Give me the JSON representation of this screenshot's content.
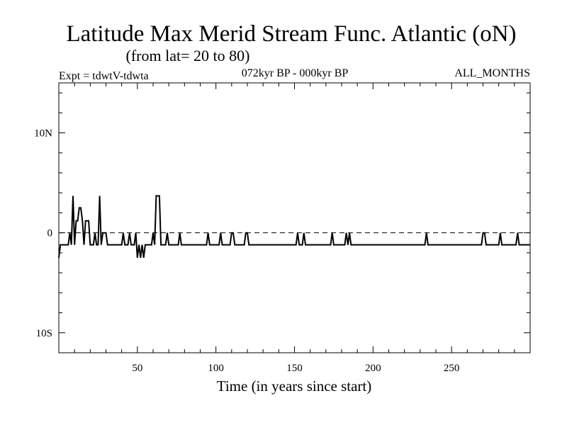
{
  "chart_data": {
    "type": "line",
    "title": "Latitude Max Merid Stream Func. Atlantic (oN)",
    "subtitle": "(from lat= 20 to 80)",
    "experiment": "Expt = tdwtV-tdwta",
    "period": "072kyr BP - 000kyr BP",
    "months": "ALL_MONTHS",
    "xlabel": "Time (in years since start)",
    "ylabel": "",
    "xlim": [
      0,
      300
    ],
    "ylim": [
      -12,
      15
    ],
    "x_ticks": [
      50,
      100,
      150,
      200,
      250
    ],
    "y_ticks": [
      {
        "value": 10,
        "label": "10N"
      },
      {
        "value": 0,
        "label": "0"
      },
      {
        "value": -10,
        "label": "10S"
      }
    ],
    "zero_line": "dashed",
    "series": [
      {
        "color": "#000000",
        "points": [
          [
            0,
            -2.5
          ],
          [
            1,
            -1.2
          ],
          [
            2,
            -1.2
          ],
          [
            3,
            -1.2
          ],
          [
            4,
            -1.2
          ],
          [
            5,
            -1.2
          ],
          [
            6,
            -1.2
          ],
          [
            7,
            0
          ],
          [
            8,
            -1.2
          ],
          [
            9,
            3.7
          ],
          [
            10,
            -1.2
          ],
          [
            11,
            1.2
          ],
          [
            12,
            1.2
          ],
          [
            13,
            2.5
          ],
          [
            14,
            2.5
          ],
          [
            15,
            1.2
          ],
          [
            16,
            -1.2
          ],
          [
            17,
            1.2
          ],
          [
            18,
            1.2
          ],
          [
            19,
            1.2
          ],
          [
            20,
            -1.2
          ],
          [
            21,
            -1.2
          ],
          [
            22,
            -1.2
          ],
          [
            23,
            0
          ],
          [
            24,
            -1.2
          ],
          [
            25,
            -1.2
          ],
          [
            26,
            3.7
          ],
          [
            27,
            -1.2
          ],
          [
            28,
            0
          ],
          [
            29,
            0
          ],
          [
            30,
            0
          ],
          [
            31,
            -1.2
          ],
          [
            32,
            -1.2
          ],
          [
            33,
            -1.2
          ],
          [
            34,
            -1.2
          ],
          [
            35,
            -1.2
          ],
          [
            36,
            -1.2
          ],
          [
            37,
            -1.2
          ],
          [
            38,
            -1.2
          ],
          [
            39,
            -1.2
          ],
          [
            40,
            -1.2
          ],
          [
            41,
            0
          ],
          [
            42,
            -1.2
          ],
          [
            43,
            -1.2
          ],
          [
            44,
            -1.2
          ],
          [
            45,
            0
          ],
          [
            46,
            -1.2
          ],
          [
            47,
            -1.2
          ],
          [
            48,
            -1.2
          ],
          [
            49,
            0
          ],
          [
            50,
            -2.5
          ],
          [
            51,
            -1.2
          ],
          [
            52,
            -2.5
          ],
          [
            53,
            -1.2
          ],
          [
            54,
            -2.5
          ],
          [
            55,
            -1.2
          ],
          [
            56,
            -1.2
          ],
          [
            57,
            -1.2
          ],
          [
            58,
            -1.2
          ],
          [
            59,
            -1.2
          ],
          [
            60,
            0
          ],
          [
            61,
            -1.2
          ],
          [
            62,
            3.7
          ],
          [
            63,
            3.7
          ],
          [
            64,
            3.7
          ],
          [
            65,
            -1.2
          ],
          [
            66,
            -1.2
          ],
          [
            67,
            -1.2
          ],
          [
            68,
            -1.2
          ],
          [
            69,
            0
          ],
          [
            70,
            -1.2
          ],
          [
            71,
            -1.2
          ],
          [
            72,
            -1.2
          ],
          [
            73,
            -1.2
          ],
          [
            74,
            -1.2
          ],
          [
            75,
            -1.2
          ],
          [
            76,
            -1.2
          ],
          [
            77,
            0
          ],
          [
            78,
            -1.2
          ],
          [
            79,
            -1.2
          ],
          [
            80,
            -1.2
          ],
          [
            81,
            -1.2
          ],
          [
            82,
            -1.2
          ],
          [
            83,
            -1.2
          ],
          [
            84,
            -1.2
          ],
          [
            85,
            -1.2
          ],
          [
            86,
            -1.2
          ],
          [
            87,
            -1.2
          ],
          [
            88,
            -1.2
          ],
          [
            89,
            -1.2
          ],
          [
            90,
            -1.2
          ],
          [
            91,
            -1.2
          ],
          [
            92,
            -1.2
          ],
          [
            93,
            -1.2
          ],
          [
            94,
            -1.2
          ],
          [
            95,
            0
          ],
          [
            96,
            -1.2
          ],
          [
            97,
            -1.2
          ],
          [
            98,
            -1.2
          ],
          [
            99,
            -1.2
          ],
          [
            100,
            -1.2
          ],
          [
            101,
            -1.2
          ],
          [
            102,
            -1.2
          ],
          [
            103,
            0
          ],
          [
            104,
            -1.2
          ],
          [
            105,
            -1.2
          ],
          [
            106,
            -1.2
          ],
          [
            107,
            -1.2
          ],
          [
            108,
            -1.2
          ],
          [
            109,
            -1.2
          ],
          [
            110,
            0
          ],
          [
            111,
            0
          ],
          [
            112,
            -1.2
          ],
          [
            113,
            -1.2
          ],
          [
            114,
            -1.2
          ],
          [
            115,
            -1.2
          ],
          [
            116,
            -1.2
          ],
          [
            117,
            -1.2
          ],
          [
            118,
            -1.2
          ],
          [
            119,
            0
          ],
          [
            120,
            0
          ],
          [
            121,
            -1.2
          ],
          [
            122,
            -1.2
          ],
          [
            123,
            -1.2
          ],
          [
            124,
            -1.2
          ],
          [
            125,
            -1.2
          ],
          [
            126,
            -1.2
          ],
          [
            127,
            -1.2
          ],
          [
            128,
            -1.2
          ],
          [
            129,
            -1.2
          ],
          [
            130,
            -1.2
          ],
          [
            131,
            -1.2
          ],
          [
            132,
            -1.2
          ],
          [
            133,
            -1.2
          ],
          [
            134,
            -1.2
          ],
          [
            135,
            -1.2
          ],
          [
            136,
            -1.2
          ],
          [
            137,
            -1.2
          ],
          [
            138,
            -1.2
          ],
          [
            139,
            -1.2
          ],
          [
            140,
            -1.2
          ],
          [
            141,
            -1.2
          ],
          [
            142,
            -1.2
          ],
          [
            143,
            -1.2
          ],
          [
            144,
            -1.2
          ],
          [
            145,
            -1.2
          ],
          [
            146,
            -1.2
          ],
          [
            147,
            -1.2
          ],
          [
            148,
            -1.2
          ],
          [
            149,
            -1.2
          ],
          [
            150,
            -1.2
          ],
          [
            151,
            -1.2
          ],
          [
            152,
            0
          ],
          [
            153,
            -1.2
          ],
          [
            154,
            -1.2
          ],
          [
            155,
            -1.2
          ],
          [
            156,
            0
          ],
          [
            157,
            -1.2
          ],
          [
            158,
            -1.2
          ],
          [
            159,
            -1.2
          ],
          [
            160,
            -1.2
          ],
          [
            161,
            -1.2
          ],
          [
            162,
            -1.2
          ],
          [
            163,
            -1.2
          ],
          [
            164,
            -1.2
          ],
          [
            165,
            -1.2
          ],
          [
            166,
            -1.2
          ],
          [
            167,
            -1.2
          ],
          [
            168,
            -1.2
          ],
          [
            169,
            -1.2
          ],
          [
            170,
            -1.2
          ],
          [
            171,
            -1.2
          ],
          [
            172,
            -1.2
          ],
          [
            173,
            -1.2
          ],
          [
            174,
            0
          ],
          [
            175,
            -1.2
          ],
          [
            176,
            -1.2
          ],
          [
            177,
            -1.2
          ],
          [
            178,
            -1.2
          ],
          [
            179,
            -1.2
          ],
          [
            180,
            -1.2
          ],
          [
            181,
            -1.2
          ],
          [
            182,
            -1.2
          ],
          [
            183,
            0
          ],
          [
            184,
            -1.2
          ],
          [
            185,
            0
          ],
          [
            186,
            -1.2
          ],
          [
            187,
            -1.2
          ],
          [
            188,
            -1.2
          ],
          [
            189,
            -1.2
          ],
          [
            190,
            -1.2
          ],
          [
            191,
            -1.2
          ],
          [
            192,
            -1.2
          ],
          [
            193,
            -1.2
          ],
          [
            194,
            -1.2
          ],
          [
            195,
            -1.2
          ],
          [
            196,
            -1.2
          ],
          [
            197,
            -1.2
          ],
          [
            198,
            -1.2
          ],
          [
            199,
            -1.2
          ],
          [
            200,
            -1.2
          ],
          [
            201,
            -1.2
          ],
          [
            202,
            -1.2
          ],
          [
            203,
            -1.2
          ],
          [
            204,
            -1.2
          ],
          [
            205,
            -1.2
          ],
          [
            206,
            -1.2
          ],
          [
            207,
            -1.2
          ],
          [
            208,
            -1.2
          ],
          [
            209,
            -1.2
          ],
          [
            210,
            -1.2
          ],
          [
            211,
            -1.2
          ],
          [
            212,
            -1.2
          ],
          [
            213,
            -1.2
          ],
          [
            214,
            -1.2
          ],
          [
            215,
            -1.2
          ],
          [
            216,
            -1.2
          ],
          [
            217,
            -1.2
          ],
          [
            218,
            -1.2
          ],
          [
            219,
            -1.2
          ],
          [
            220,
            -1.2
          ],
          [
            221,
            -1.2
          ],
          [
            222,
            -1.2
          ],
          [
            223,
            -1.2
          ],
          [
            224,
            -1.2
          ],
          [
            225,
            -1.2
          ],
          [
            226,
            -1.2
          ],
          [
            227,
            -1.2
          ],
          [
            228,
            -1.2
          ],
          [
            229,
            -1.2
          ],
          [
            230,
            -1.2
          ],
          [
            231,
            -1.2
          ],
          [
            232,
            -1.2
          ],
          [
            233,
            -1.2
          ],
          [
            234,
            0
          ],
          [
            235,
            -1.2
          ],
          [
            236,
            -1.2
          ],
          [
            237,
            -1.2
          ],
          [
            238,
            -1.2
          ],
          [
            239,
            -1.2
          ],
          [
            240,
            -1.2
          ],
          [
            241,
            -1.2
          ],
          [
            242,
            -1.2
          ],
          [
            243,
            -1.2
          ],
          [
            244,
            -1.2
          ],
          [
            245,
            -1.2
          ],
          [
            246,
            -1.2
          ],
          [
            247,
            -1.2
          ],
          [
            248,
            -1.2
          ],
          [
            249,
            -1.2
          ],
          [
            250,
            -1.2
          ],
          [
            251,
            -1.2
          ],
          [
            252,
            -1.2
          ],
          [
            253,
            -1.2
          ],
          [
            254,
            -1.2
          ],
          [
            255,
            -1.2
          ],
          [
            256,
            -1.2
          ],
          [
            257,
            -1.2
          ],
          [
            258,
            -1.2
          ],
          [
            259,
            -1.2
          ],
          [
            260,
            -1.2
          ],
          [
            261,
            -1.2
          ],
          [
            262,
            -1.2
          ],
          [
            263,
            -1.2
          ],
          [
            264,
            -1.2
          ],
          [
            265,
            -1.2
          ],
          [
            266,
            -1.2
          ],
          [
            267,
            -1.2
          ],
          [
            268,
            -1.2
          ],
          [
            269,
            -1.2
          ],
          [
            270,
            0
          ],
          [
            271,
            0
          ],
          [
            272,
            -1.2
          ],
          [
            273,
            -1.2
          ],
          [
            274,
            -1.2
          ],
          [
            275,
            -1.2
          ],
          [
            276,
            -1.2
          ],
          [
            277,
            -1.2
          ],
          [
            278,
            -1.2
          ],
          [
            279,
            -1.2
          ],
          [
            280,
            -1.2
          ],
          [
            281,
            0
          ],
          [
            282,
            -1.2
          ],
          [
            283,
            -1.2
          ],
          [
            284,
            -1.2
          ],
          [
            285,
            -1.2
          ],
          [
            286,
            -1.2
          ],
          [
            287,
            -1.2
          ],
          [
            288,
            -1.2
          ],
          [
            289,
            -1.2
          ],
          [
            290,
            -1.2
          ],
          [
            291,
            -1.2
          ],
          [
            292,
            0
          ],
          [
            293,
            -1.2
          ],
          [
            294,
            -1.2
          ],
          [
            295,
            -1.2
          ],
          [
            296,
            -1.2
          ],
          [
            297,
            -1.2
          ],
          [
            298,
            -1.2
          ],
          [
            299,
            -1.2
          ],
          [
            300,
            -1.2
          ]
        ]
      }
    ]
  }
}
